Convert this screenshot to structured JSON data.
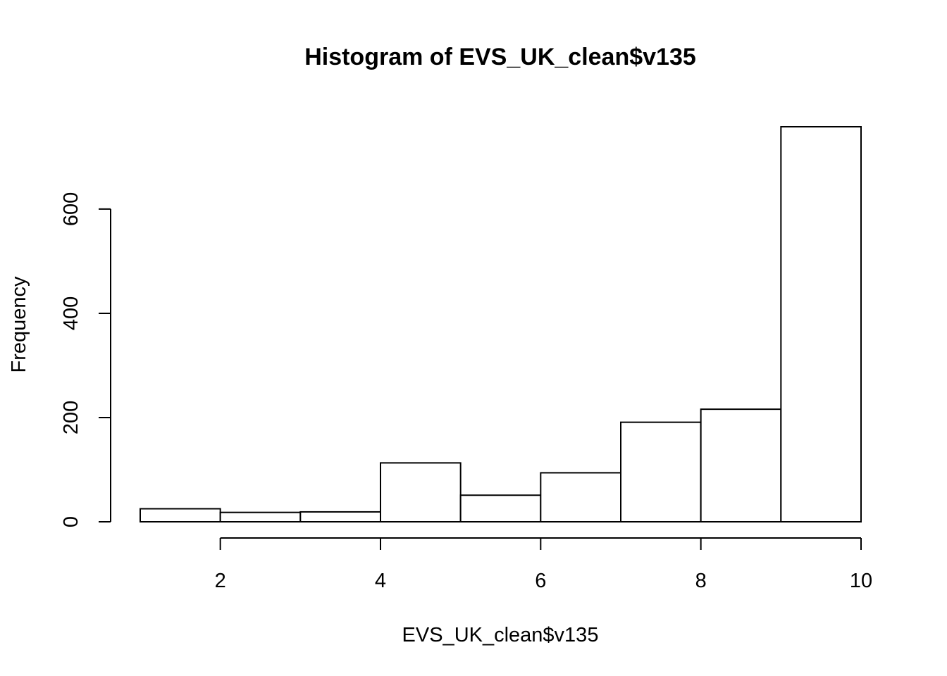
{
  "chart_data": {
    "type": "bar",
    "histogram": true,
    "title": "Histogram of EVS_UK_clean$v135",
    "xlabel": "EVS_UK_clean$v135",
    "ylabel": "Frequency",
    "bins": [
      {
        "from": 1,
        "to": 2,
        "count": 25
      },
      {
        "from": 2,
        "to": 3,
        "count": 18
      },
      {
        "from": 3,
        "to": 4,
        "count": 19
      },
      {
        "from": 4,
        "to": 5,
        "count": 113
      },
      {
        "from": 5,
        "to": 6,
        "count": 51
      },
      {
        "from": 6,
        "to": 7,
        "count": 94
      },
      {
        "from": 7,
        "to": 8,
        "count": 191
      },
      {
        "from": 8,
        "to": 9,
        "count": 216
      },
      {
        "from": 9,
        "to": 10,
        "count": 758
      }
    ],
    "x_ticks": [
      2,
      4,
      6,
      8,
      10
    ],
    "y_ticks": [
      0,
      200,
      400,
      600
    ],
    "xlim": [
      1,
      10
    ],
    "ylim": [
      0,
      758
    ],
    "grid": false,
    "legend": "none"
  }
}
